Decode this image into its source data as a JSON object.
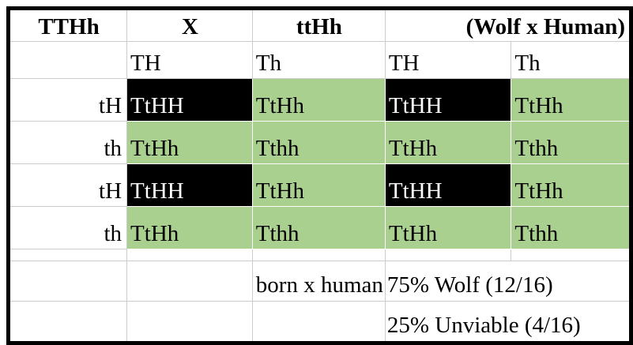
{
  "header": {
    "parent1": "TTHh",
    "cross_symbol": "X",
    "parent2": "ttHh",
    "cross_label": "(Wolf x Human)"
  },
  "gametes": [
    "TH",
    "Th",
    "TH",
    "Th"
  ],
  "grid_rows": [
    {
      "label": "tH",
      "cells": [
        {
          "genotype": "TtHH",
          "variant": "lethal"
        },
        {
          "genotype": "TtHh",
          "variant": "viable"
        },
        {
          "genotype": "TtHH",
          "variant": "lethal"
        },
        {
          "genotype": "TtHh",
          "variant": "viable"
        }
      ]
    },
    {
      "label": "th",
      "cells": [
        {
          "genotype": "TtHh",
          "variant": "viable"
        },
        {
          "genotype": "Tthh",
          "variant": "viable"
        },
        {
          "genotype": "TtHh",
          "variant": "viable"
        },
        {
          "genotype": "Tthh",
          "variant": "viable"
        }
      ]
    },
    {
      "label": "tH",
      "cells": [
        {
          "genotype": "TtHH",
          "variant": "lethal"
        },
        {
          "genotype": "TtHh",
          "variant": "viable"
        },
        {
          "genotype": "TtHH",
          "variant": "lethal"
        },
        {
          "genotype": "TtHh",
          "variant": "viable"
        }
      ]
    },
    {
      "label": "th",
      "cells": [
        {
          "genotype": "TtHh",
          "variant": "viable"
        },
        {
          "genotype": "Tthh",
          "variant": "viable"
        },
        {
          "genotype": "TtHh",
          "variant": "viable"
        },
        {
          "genotype": "Tthh",
          "variant": "viable"
        }
      ]
    }
  ],
  "summary": {
    "cross_note": "born x human",
    "wolf_result": "75% Wolf (12/16)",
    "unviable_result": "25% Unviable (4/16)"
  },
  "colors": {
    "viable_fill": "#a9d08e",
    "lethal_fill": "#000000",
    "lethal_text": "#ffffff",
    "gridline": "#cccccc",
    "outer_border": "#000000"
  }
}
